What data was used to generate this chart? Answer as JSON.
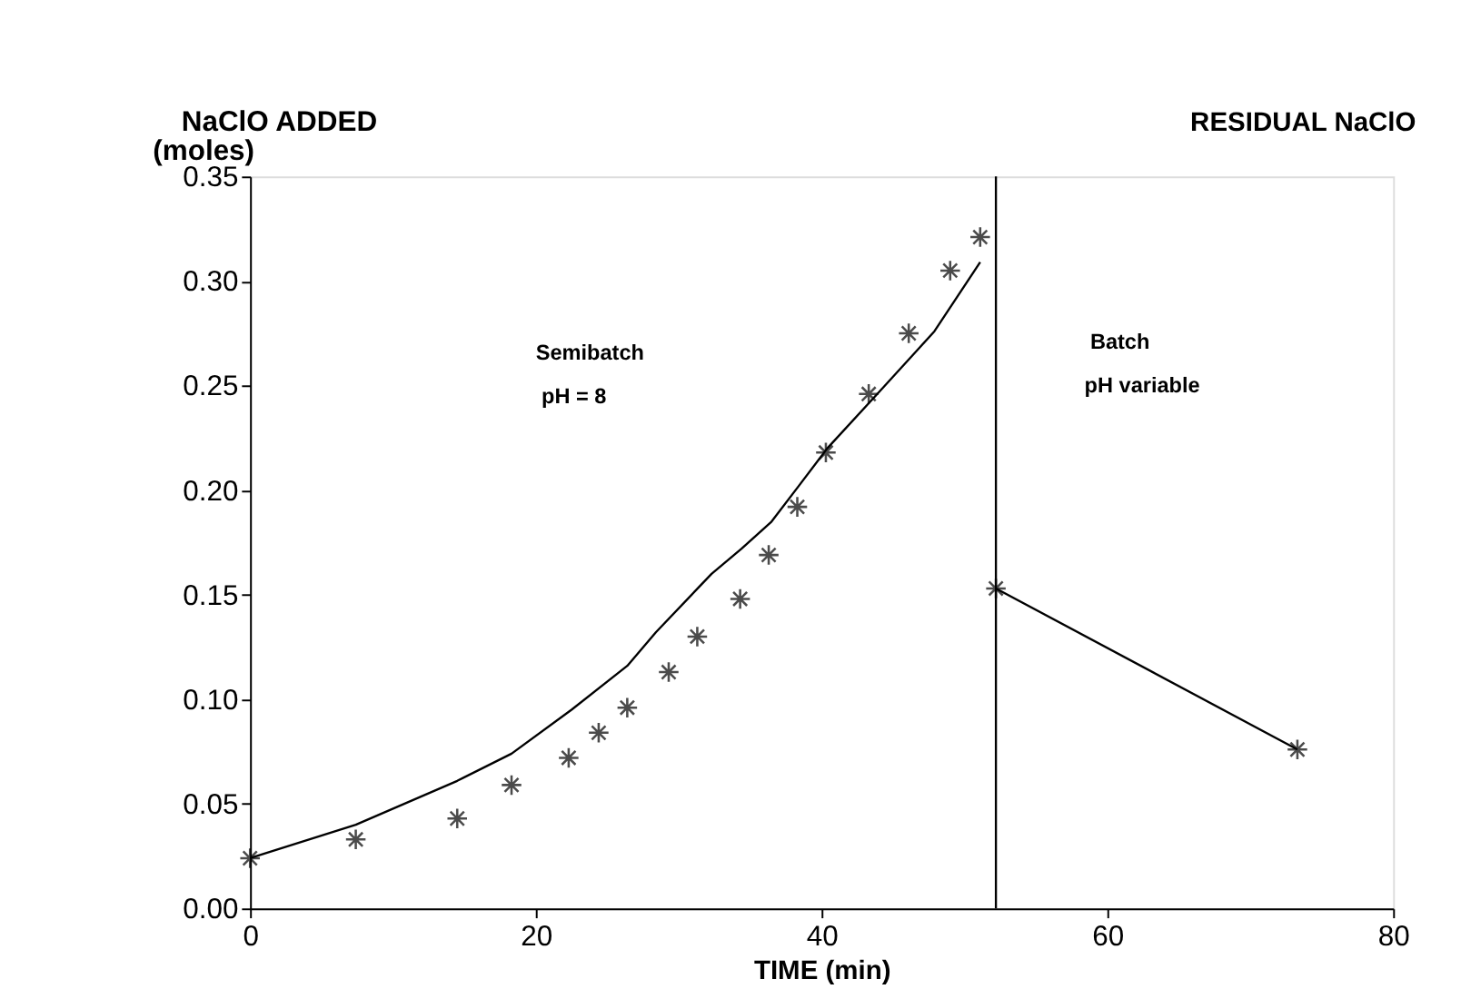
{
  "chart_data": {
    "type": "scatter",
    "xlabel": "TIME (min)",
    "ylabel": "NaClO ADDED",
    "annotations": [
      "(moles)",
      "RESIDUAL NaClO",
      "Semibatch",
      "pH = 8",
      "Batch",
      "pH variable"
    ],
    "series": [
      {
        "color": "#000000",
        "marker": "cross",
        "x": [
          0,
          7.4,
          14.5,
          18.3,
          22.3,
          24.4,
          26.4,
          29.3,
          31.3,
          34.3,
          36.3,
          38.3,
          40.3,
          43.3,
          46.1,
          49.0,
          51.1
        ],
        "values": [
          0.024,
          0.033,
          0.043,
          0.059,
          0.072,
          0.084,
          0.096,
          0.113,
          0.13,
          0.148,
          0.169,
          0.192,
          0.218,
          0.246,
          0.275,
          0.305,
          0.321
        ]
      },
      {
        "type": "line",
        "color": "#000000",
        "line_style": "solid",
        "marker": "none",
        "x": [
          0,
          7.4,
          14.5,
          18.3,
          22.5,
          26.4,
          28.4,
          32.3,
          34.4,
          36.5,
          38.4,
          40.4,
          43.9,
          46.7,
          47.9,
          51.1
        ],
        "values": [
          0.024,
          0.04,
          0.061,
          0.074,
          0.095,
          0.116,
          0.132,
          0.16,
          0.172,
          0.185,
          0.202,
          0.22,
          0.246,
          0.267,
          0.276,
          0.309
        ]
      },
      {
        "type": "line",
        "color": "#000000",
        "line_style": "solid",
        "marker": "cross",
        "x": [
          52.2,
          73.3
        ],
        "values": [
          0.153,
          0.076
        ]
      }
    ],
    "ref_lines": [
      {
        "axis": "x",
        "value": 52.2,
        "color": "#000000",
        "line_style": "solid"
      }
    ],
    "xlim": [
      0,
      80
    ],
    "xticks": [
      0,
      20,
      40,
      60,
      80
    ],
    "ylim": [
      0,
      0.35
    ],
    "yticks": [
      {
        "value": 0,
        "label": "0.00"
      },
      {
        "value": 0.05,
        "label": "0.05"
      },
      {
        "value": 0.1,
        "label": "0.10"
      },
      {
        "value": 0.15,
        "label": "0.15"
      },
      {
        "value": 0.2,
        "label": "0.20"
      },
      {
        "value": 0.25,
        "label": "0.25"
      },
      {
        "value": 0.3,
        "label": "0.30"
      },
      {
        "value": 0.35,
        "label": "0.35"
      }
    ],
    "grid": false
  }
}
